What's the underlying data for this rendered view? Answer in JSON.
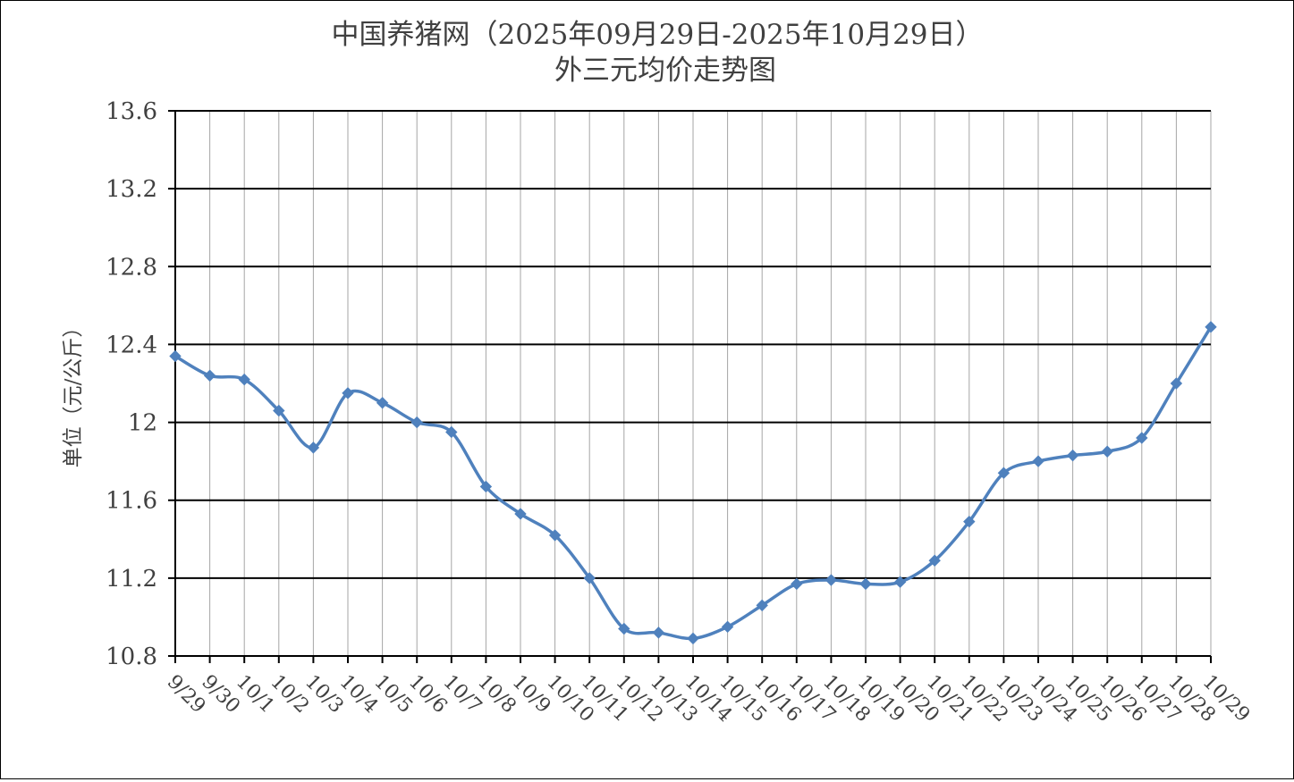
{
  "chart_data": {
    "type": "line",
    "title": "中国养猪网（2025年09月29日-2025年10月29日）",
    "subtitle": "外三元均价走势图",
    "xlabel": "",
    "ylabel": "单位（元/公斤）",
    "ylim": [
      10.8,
      13.6
    ],
    "yticks": [
      "13.6",
      "13.2",
      "12.8",
      "12.4",
      "12",
      "11.6",
      "11.2",
      "10.8"
    ],
    "ytick_values": [
      13.6,
      13.2,
      12.8,
      12.4,
      12.0,
      11.6,
      11.2,
      10.8
    ],
    "grid": true,
    "line_color": "#4f81bd",
    "categories": [
      "9/29",
      "9/30",
      "10/1",
      "10/2",
      "10/3",
      "10/4",
      "10/5",
      "10/6",
      "10/7",
      "10/8",
      "10/9",
      "10/10",
      "10/11",
      "10/12",
      "10/13",
      "10/14",
      "10/15",
      "10/16",
      "10/17",
      "10/18",
      "10/19",
      "10/20",
      "10/21",
      "10/22",
      "10/23",
      "10/24",
      "10/25",
      "10/26",
      "10/27",
      "10/28",
      "10/29"
    ],
    "values": [
      12.34,
      12.24,
      12.22,
      12.06,
      11.87,
      12.15,
      12.1,
      12.0,
      11.95,
      11.67,
      11.53,
      11.42,
      11.2,
      10.94,
      10.92,
      10.89,
      10.95,
      11.06,
      11.17,
      11.19,
      11.17,
      11.18,
      11.29,
      11.49,
      11.74,
      11.8,
      11.83,
      11.85,
      11.92,
      12.2,
      12.49
    ]
  }
}
